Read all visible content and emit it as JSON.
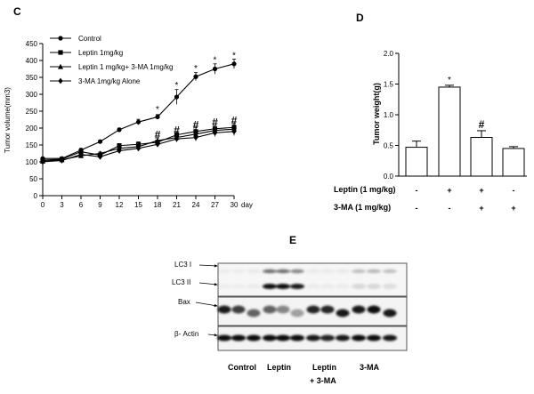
{
  "panels": {
    "c": {
      "letter": "C"
    },
    "d": {
      "letter": "D"
    },
    "e": {
      "letter": "E"
    }
  },
  "chart_data": [
    {
      "type": "line",
      "panel": "C",
      "title": "",
      "xlabel": "day",
      "ylabel": "Tumor volume(mm3)",
      "x": [
        0,
        3,
        6,
        9,
        12,
        15,
        18,
        21,
        24,
        27,
        30
      ],
      "xticks": [
        "0",
        "3",
        "6",
        "9",
        "12",
        "15",
        "18",
        "21",
        "24",
        "27",
        "30"
      ],
      "yticks": [
        "0",
        "50",
        "100",
        "150",
        "200",
        "250",
        "300",
        "350",
        "400",
        "450"
      ],
      "xlim": [
        0,
        30
      ],
      "ylim": [
        0,
        450
      ],
      "legend_position": "top-left",
      "series": [
        {
          "name": "Control",
          "marker": "circle",
          "values": [
            110,
            110,
            135,
            160,
            195,
            218,
            233,
            292,
            352,
            375,
            390
          ],
          "err": [
            2,
            3,
            5,
            4,
            5,
            8,
            7,
            22,
            12,
            15,
            14
          ]
        },
        {
          "name": "Leptin 1mg/kg",
          "marker": "square",
          "values": [
            105,
            108,
            130,
            120,
            148,
            152,
            158,
            180,
            190,
            198,
            202
          ],
          "err": [
            2,
            3,
            5,
            5,
            6,
            7,
            6,
            10,
            12,
            10,
            12
          ]
        },
        {
          "name": "Leptin 1 mg/kg+ 3-MA 1mg/kg",
          "marker": "triangle",
          "values": [
            102,
            106,
            118,
            125,
            140,
            145,
            163,
            172,
            182,
            193,
            197
          ],
          "err": [
            2,
            3,
            5,
            4,
            6,
            6,
            8,
            9,
            10,
            10,
            12
          ]
        },
        {
          "name": "3-MA 1mg/kg Alone",
          "marker": "diamond",
          "values": [
            100,
            104,
            122,
            115,
            133,
            140,
            152,
            168,
            172,
            186,
            190
          ],
          "err": [
            2,
            3,
            5,
            5,
            5,
            6,
            7,
            9,
            10,
            11,
            12
          ]
        }
      ],
      "annotations": [
        {
          "text": "*",
          "x": 18,
          "y": 248
        },
        {
          "text": "*",
          "x": 21,
          "y": 318
        },
        {
          "text": "*",
          "x": 24,
          "y": 368
        },
        {
          "text": "*",
          "x": 27,
          "y": 393
        },
        {
          "text": "*",
          "x": 30,
          "y": 407
        },
        {
          "text": "#",
          "x": 18,
          "y": 170
        },
        {
          "text": "#",
          "x": 21,
          "y": 183
        },
        {
          "text": "#",
          "x": 24,
          "y": 199
        },
        {
          "text": "#",
          "x": 27,
          "y": 206
        },
        {
          "text": "#",
          "x": 30,
          "y": 212
        }
      ]
    },
    {
      "type": "bar",
      "panel": "D",
      "title": "",
      "ylabel": "Tumor weight(g)",
      "yticks": [
        "0.0",
        "0.5",
        "1.0",
        "1.5",
        "2.0"
      ],
      "ylim": [
        0,
        2.0
      ],
      "values": [
        0.47,
        1.45,
        0.63,
        0.45
      ],
      "err": [
        0.1,
        0.03,
        0.11,
        0.03
      ],
      "annotations": [
        "",
        "*",
        "#",
        ""
      ],
      "treatments": [
        {
          "label": "Leptin (1 mg/kg)",
          "marks": [
            "-",
            "+",
            "+",
            "-"
          ]
        },
        {
          "label": "3-MA (1 mg/kg)",
          "marks": [
            "-",
            "-",
            "+",
            "+"
          ]
        }
      ]
    }
  ],
  "blot": {
    "rows": [
      {
        "label": "LC3 I"
      },
      {
        "label": "LC3 II"
      },
      {
        "label": "Bax"
      },
      {
        "label": "β- Actin"
      }
    ],
    "groups": [
      {
        "line1": "Control",
        "line2": ""
      },
      {
        "line1": "Leptin",
        "line2": ""
      },
      {
        "line1": "Leptin",
        "line2": "+ 3-MA"
      },
      {
        "line1": "3-MA",
        "line2": ""
      }
    ]
  }
}
